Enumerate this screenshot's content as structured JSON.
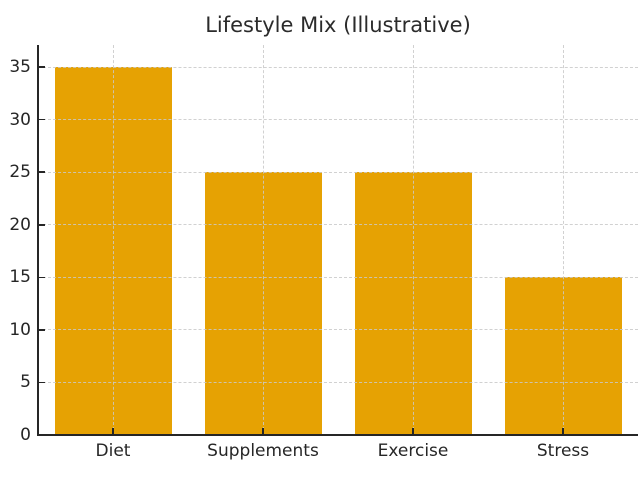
{
  "chart_data": {
    "type": "bar",
    "title": "Lifestyle Mix (Illustrative)",
    "categories": [
      "Diet",
      "Supplements",
      "Exercise",
      "Stress"
    ],
    "values": [
      35,
      25,
      25,
      15
    ],
    "xlabel": "",
    "ylabel": "",
    "ylim": [
      0,
      37.1
    ],
    "yticks": [
      0,
      5,
      10,
      15,
      20,
      25,
      30,
      35
    ],
    "grid": "both-axes, dashed, drawn over bars",
    "legend_position": "none",
    "bar_color": "#E6A203",
    "grid_color": "#C9C9C9",
    "spine_color": "#262626",
    "text_color": "#262626",
    "background_color": "#FFFFFF",
    "bar_width_fraction": 0.78,
    "visible_spines": [
      "left",
      "bottom"
    ],
    "tick_direction": "in"
  }
}
